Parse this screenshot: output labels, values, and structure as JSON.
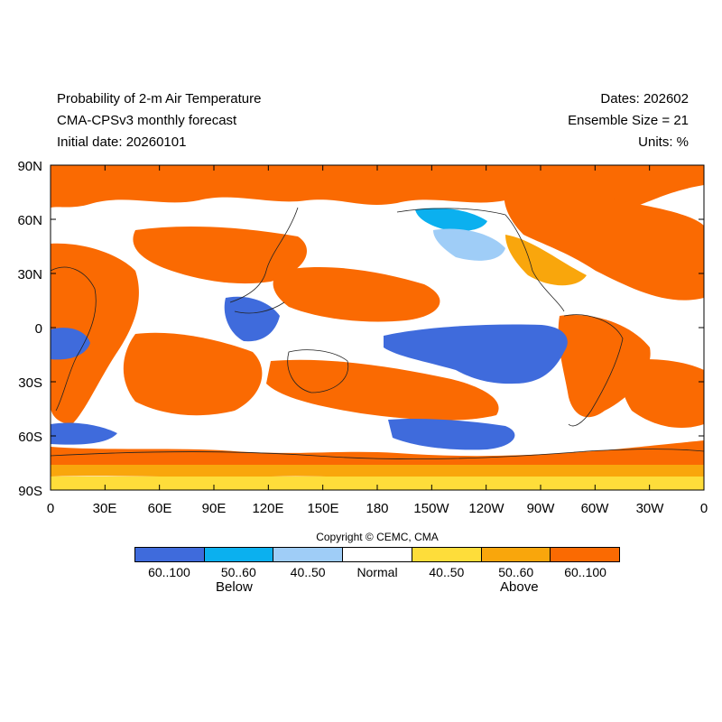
{
  "header": {
    "title": "Probability of 2-m Air Temperature",
    "subtitle": "CMA-CPSv3 monthly forecast",
    "initial_date": "Initial date: 20260101",
    "dates": "Dates: 202602",
    "ensemble": "Ensemble Size = 21",
    "units": "Units: %"
  },
  "lat_ticks": [
    "90N",
    "60N",
    "30N",
    "0",
    "30S",
    "60S",
    "90S"
  ],
  "lon_ticks": [
    "0",
    "30E",
    "60E",
    "90E",
    "120E",
    "150E",
    "180",
    "150W",
    "120W",
    "90W",
    "60W",
    "30W",
    "0"
  ],
  "colors": {
    "below_high": "#3f6bdc",
    "below_mid": "#0bb0ef",
    "below_low": "#9fcdf7",
    "normal": "#ffffff",
    "above_low": "#fedd3a",
    "above_mid": "#f9a60c",
    "above_high": "#fa6a02"
  },
  "copyright": "Copyright © CEMC, CMA",
  "legend": {
    "items": [
      {
        "label": "60..100",
        "color": "#3f6bdc"
      },
      {
        "label": "50..60",
        "color": "#0bb0ef"
      },
      {
        "label": "40..50",
        "color": "#9fcdf7"
      },
      {
        "label": "Normal",
        "color": "#ffffff"
      },
      {
        "label": "40..50",
        "color": "#fedd3a"
      },
      {
        "label": "50..60",
        "color": "#f9a60c"
      },
      {
        "label": "60..100",
        "color": "#fa6a02"
      }
    ],
    "below_label": "Below",
    "above_label": "Above"
  }
}
